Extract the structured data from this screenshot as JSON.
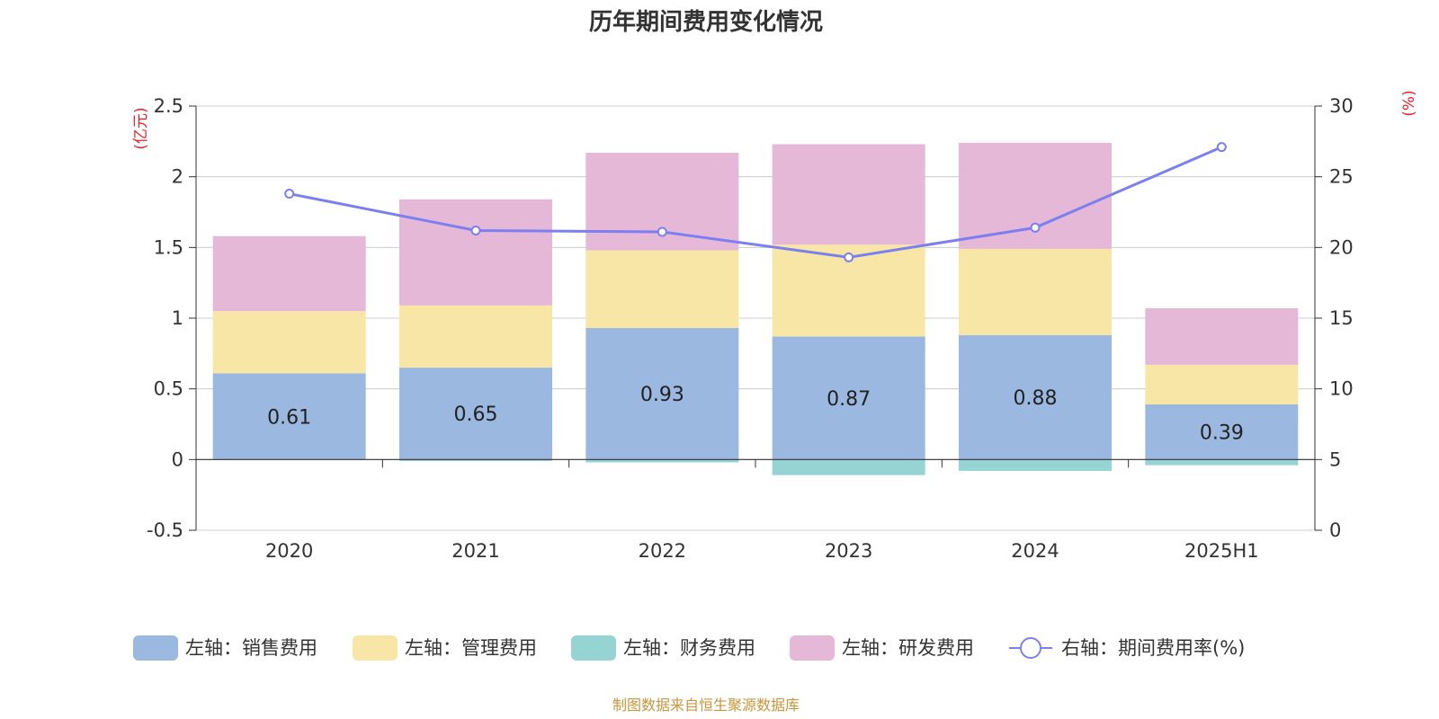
{
  "title": "历年期间费用变化情况",
  "source_note": "制图数据来自恒生聚源数据库",
  "colors": {
    "sales": "#9bb8e0",
    "admin": "#f7e6a6",
    "finance": "#96d4d4",
    "rnd": "#e6b8d8",
    "rate_line": "#7b7ff0",
    "unit_label": "#e8202a",
    "source": "#c8953a"
  },
  "chart_data": {
    "type": "bar",
    "stacked": true,
    "title": "历年期间费用变化情况",
    "categories": [
      "2020",
      "2021",
      "2022",
      "2023",
      "2024",
      "2025H1"
    ],
    "left_axis": {
      "unit": "(亿元)",
      "ylim": [
        -0.5,
        2.5
      ],
      "ticks": [
        "-0.5",
        "0",
        "0.5",
        "1",
        "1.5",
        "2",
        "2.5"
      ]
    },
    "right_axis": {
      "unit": "(%)",
      "ylim": [
        0,
        30
      ],
      "ticks": [
        "0",
        "5",
        "10",
        "15",
        "20",
        "25",
        "30"
      ]
    },
    "grid": true,
    "legend_position": "bottom",
    "series": [
      {
        "key": "sales",
        "name": "左轴：销售费用",
        "axis": "left",
        "type": "bar",
        "values": [
          0.61,
          0.65,
          0.93,
          0.87,
          0.88,
          0.39
        ],
        "labels": [
          "0.61",
          "0.65",
          "0.93",
          "0.87",
          "0.88",
          "0.39"
        ]
      },
      {
        "key": "admin",
        "name": "左轴：管理费用",
        "axis": "left",
        "type": "bar",
        "values": [
          0.44,
          0.44,
          0.55,
          0.65,
          0.61,
          0.28
        ]
      },
      {
        "key": "finance",
        "name": "左轴：财务费用",
        "axis": "left",
        "type": "bar",
        "values": [
          0.0,
          -0.01,
          -0.02,
          -0.11,
          -0.08,
          -0.04
        ]
      },
      {
        "key": "rnd",
        "name": "左轴：研发费用",
        "axis": "left",
        "type": "bar",
        "values": [
          0.53,
          0.75,
          0.69,
          0.71,
          0.75,
          0.4
        ]
      },
      {
        "key": "rate_line",
        "name": "右轴：期间费用率(%)",
        "axis": "right",
        "type": "line",
        "values": [
          23.8,
          21.2,
          21.1,
          19.3,
          21.4,
          27.1
        ]
      }
    ]
  }
}
